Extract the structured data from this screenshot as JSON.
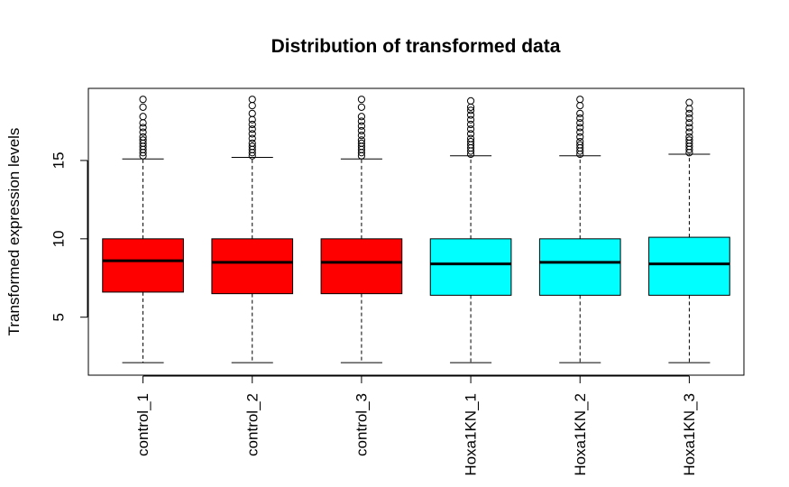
{
  "chart_data": {
    "type": "boxplot",
    "title": "Distribution of transformed data",
    "xlabel": "",
    "ylabel": "Transformed expression levels",
    "ylim": [
      1.3,
      19.6
    ],
    "yticks": [
      5,
      10,
      15
    ],
    "grid": false,
    "legend": "none",
    "colors": {
      "control": "#ff0000",
      "knockdown": "#00ffff",
      "median": "#000000",
      "border": "#000000"
    },
    "categories": [
      "control_1",
      "control_2",
      "control_3",
      "Hoxa1KN_1",
      "Hoxa1KN_2",
      "Hoxa1KN_3"
    ],
    "boxes": [
      {
        "label": "control_1",
        "group": "control",
        "min": 2.1,
        "q1": 6.6,
        "median": 8.6,
        "q3": 10.0,
        "whisker_high": 15.1,
        "outliers": [
          15.3,
          15.5,
          15.7,
          15.9,
          16.1,
          16.3,
          16.5,
          16.8,
          17.1,
          17.4,
          17.8,
          18.4,
          18.9
        ]
      },
      {
        "label": "control_2",
        "group": "control",
        "min": 2.1,
        "q1": 6.5,
        "median": 8.5,
        "q3": 10.0,
        "whisker_high": 15.2,
        "outliers": [
          15.3,
          15.5,
          15.7,
          15.9,
          16.1,
          16.4,
          16.7,
          17.0,
          17.3,
          17.6,
          18.0,
          18.5,
          18.9
        ]
      },
      {
        "label": "control_3",
        "group": "control",
        "min": 2.1,
        "q1": 6.5,
        "median": 8.5,
        "q3": 10.0,
        "whisker_high": 15.1,
        "outliers": [
          15.3,
          15.5,
          15.7,
          15.9,
          16.1,
          16.3,
          16.6,
          16.9,
          17.2,
          17.5,
          17.8,
          18.4,
          18.9
        ]
      },
      {
        "label": "Hoxa1KN_1",
        "group": "knockdown",
        "min": 2.1,
        "q1": 6.4,
        "median": 8.4,
        "q3": 10.0,
        "whisker_high": 15.3,
        "outliers": [
          15.4,
          15.6,
          15.8,
          16.0,
          16.2,
          16.4,
          16.7,
          17.0,
          17.3,
          17.6,
          17.9,
          18.2,
          18.4,
          18.8
        ]
      },
      {
        "label": "Hoxa1KN_2",
        "group": "knockdown",
        "min": 2.1,
        "q1": 6.4,
        "median": 8.5,
        "q3": 10.0,
        "whisker_high": 15.3,
        "outliers": [
          15.4,
          15.6,
          15.8,
          16.0,
          16.2,
          16.5,
          16.8,
          17.1,
          17.4,
          17.7,
          18.0,
          18.5,
          18.9
        ]
      },
      {
        "label": "Hoxa1KN_3",
        "group": "knockdown",
        "min": 2.1,
        "q1": 6.4,
        "median": 8.4,
        "q3": 10.1,
        "whisker_high": 15.4,
        "outliers": [
          15.5,
          15.7,
          15.9,
          16.1,
          16.3,
          16.5,
          16.8,
          17.1,
          17.4,
          17.7,
          18.0,
          18.3,
          18.7
        ]
      }
    ]
  }
}
